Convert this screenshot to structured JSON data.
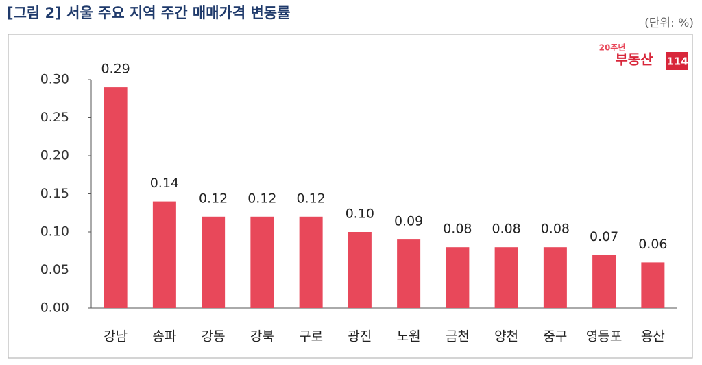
{
  "chart_data": {
    "type": "bar",
    "title": "[그림 2] 서울 주요 지역 주간 매매가격 변동률",
    "unit_note": "(단위: %)",
    "logo": {
      "badge": "20주년",
      "name": "부동산",
      "number": "114"
    },
    "categories": [
      "강남",
      "송파",
      "강동",
      "강북",
      "구로",
      "광진",
      "노원",
      "금천",
      "양천",
      "중구",
      "영등포",
      "용산"
    ],
    "values": [
      0.29,
      0.14,
      0.12,
      0.12,
      0.12,
      0.1,
      0.09,
      0.08,
      0.08,
      0.08,
      0.07,
      0.06
    ],
    "value_labels": [
      "0.29",
      "0.14",
      "0.12",
      "0.12",
      "0.12",
      "0.10",
      "0.09",
      "0.08",
      "0.08",
      "0.08",
      "0.07",
      "0.06"
    ],
    "color": "#e8485a",
    "ylim": [
      0,
      0.3
    ],
    "yticks": [
      {
        "value": 0,
        "label": "0.00"
      },
      {
        "value": 0.05,
        "label": "0.05"
      },
      {
        "value": 0.1,
        "label": "0.10"
      },
      {
        "value": 0.15,
        "label": "0.15"
      },
      {
        "value": 0.2,
        "label": "0.20"
      },
      {
        "value": 0.25,
        "label": "0.25"
      },
      {
        "value": 0.3,
        "label": "0.30"
      }
    ],
    "grid": false
  }
}
